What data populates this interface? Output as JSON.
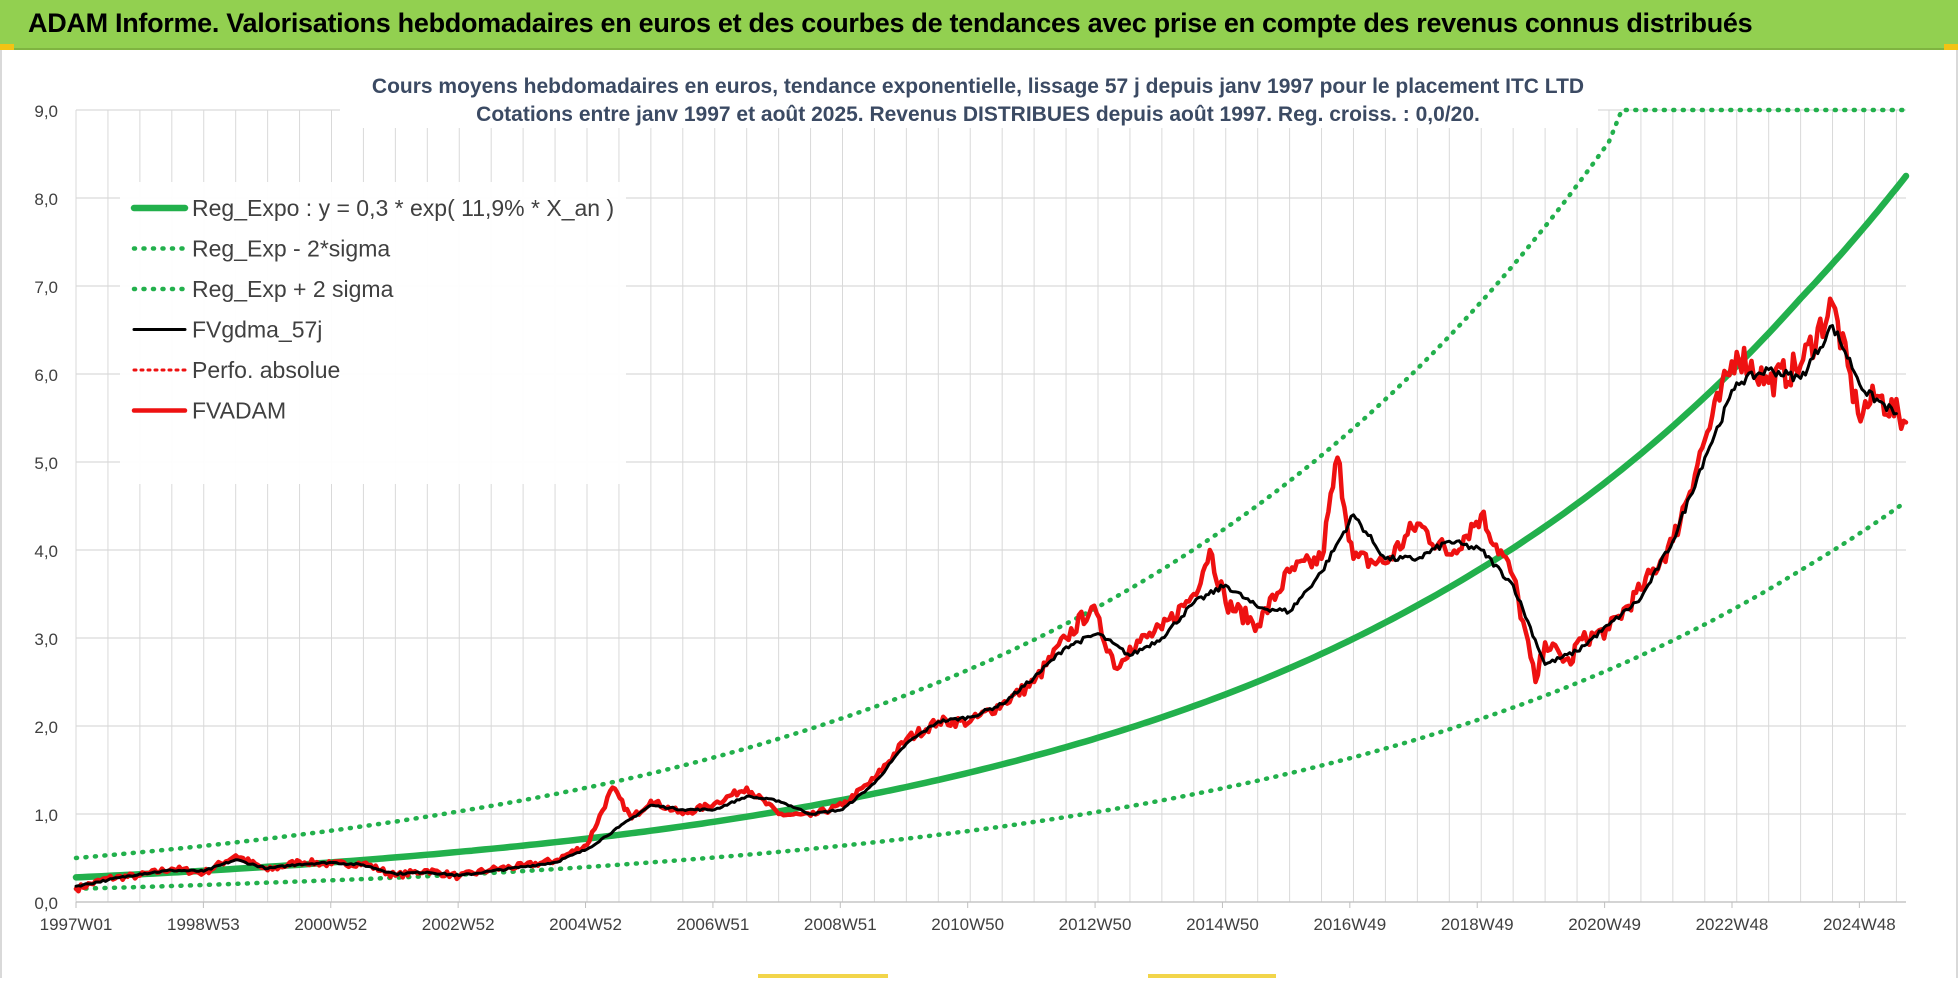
{
  "header": {
    "title": "ADAM Informe. Valorisations hebdomadaires en euros et des courbes de tendances avec prise en compte des revenus connus distribués"
  },
  "chart_data": {
    "type": "line",
    "title": "Cours moyens hebdomadaires en euros, tendance exponentielle, lissage 57 j depuis janv 1997 pour le placement ITC LTD",
    "subtitle": "Cotations entre janv 1997 et août 2025.  Revenus DISTRIBUES depuis août 1997. Reg. croiss. : 0,0/20.",
    "xlabel": "",
    "ylabel": "",
    "x_ticks": [
      "1997W01",
      "1998W53",
      "2000W52",
      "2002W52",
      "2004W52",
      "2006W51",
      "2008W51",
      "2010W50",
      "2012W50",
      "2014W50",
      "2016W49",
      "2018W49",
      "2020W49",
      "2022W48",
      "2024W48"
    ],
    "x_range": [
      1997.0,
      2025.65
    ],
    "ylim": [
      0,
      9
    ],
    "y_ticks": [
      "0,0",
      "1,0",
      "2,0",
      "3,0",
      "4,0",
      "5,0",
      "6,0",
      "7,0",
      "8,0",
      "9,0"
    ],
    "grid": true,
    "legend_position": "top-left",
    "colors": {
      "trend": "#22b04c",
      "band": "#22b04c",
      "smooth": "#000000",
      "price": "#ee1111",
      "grid": "#d9d9d9"
    },
    "series": [
      {
        "name": "Reg_Expo : y = 0,3 * exp( 11,9% *  X_an )",
        "style": "solid-thick",
        "x": [
          1997,
          2000,
          2003,
          2006,
          2009,
          2012,
          2015,
          2018,
          2021,
          2024,
          2025.65
        ],
        "values": [
          0.28,
          0.4,
          0.57,
          0.81,
          1.16,
          1.66,
          2.36,
          3.37,
          4.8,
          6.86,
          8.25
        ]
      },
      {
        "name": "Reg_Exp - 2*sigma",
        "style": "dotted",
        "x": [
          1997,
          2000,
          2003,
          2006,
          2009,
          2012,
          2015,
          2018,
          2021,
          2024,
          2025.65
        ],
        "values": [
          0.15,
          0.22,
          0.31,
          0.45,
          0.64,
          0.91,
          1.3,
          1.85,
          2.64,
          3.77,
          4.55
        ]
      },
      {
        "name": "Reg_Exp + 2 sigma",
        "style": "dotted",
        "x": [
          1997,
          2000,
          2003,
          2006,
          2009,
          2012,
          2015,
          2018,
          2021,
          2021.2,
          2025.65
        ],
        "values": [
          0.5,
          0.72,
          1.03,
          1.46,
          2.09,
          2.98,
          4.25,
          6.06,
          8.64,
          9.0,
          9.0
        ]
      },
      {
        "name": "FVgdma_57j",
        "style": "solid",
        "x": [
          1997.0,
          1997.5,
          1998.0,
          1998.5,
          1999.0,
          1999.5,
          2000.0,
          2000.5,
          2001.0,
          2001.5,
          2002.0,
          2002.5,
          2003.0,
          2003.5,
          2004.0,
          2004.5,
          2005.0,
          2005.5,
          2006.0,
          2006.5,
          2007.0,
          2007.5,
          2008.0,
          2008.5,
          2009.0,
          2009.5,
          2010.0,
          2010.5,
          2011.0,
          2011.5,
          2012.0,
          2012.5,
          2013.0,
          2013.5,
          2014.0,
          2014.5,
          2015.0,
          2015.5,
          2016.0,
          2016.5,
          2017.0,
          2017.5,
          2018.0,
          2018.5,
          2019.0,
          2019.5,
          2020.0,
          2020.5,
          2021.0,
          2021.5,
          2022.0,
          2022.5,
          2023.0,
          2023.5,
          2024.0,
          2024.5,
          2025.0,
          2025.5
        ],
        "values": [
          0.18,
          0.25,
          0.32,
          0.36,
          0.35,
          0.48,
          0.38,
          0.43,
          0.45,
          0.42,
          0.32,
          0.34,
          0.3,
          0.35,
          0.4,
          0.45,
          0.6,
          0.85,
          1.1,
          1.05,
          1.05,
          1.2,
          1.15,
          1.0,
          1.05,
          1.35,
          1.8,
          2.05,
          2.1,
          2.25,
          2.55,
          2.9,
          3.05,
          2.8,
          3.0,
          3.4,
          3.6,
          3.35,
          3.3,
          3.75,
          4.4,
          3.9,
          3.9,
          4.1,
          4.0,
          3.6,
          2.7,
          2.85,
          3.15,
          3.45,
          4.1,
          5.05,
          5.9,
          6.05,
          5.95,
          6.55,
          5.8,
          5.55
        ]
      },
      {
        "name": "Perfo. absolue",
        "style": "dotted",
        "x": [],
        "values": []
      },
      {
        "name": "FVADAM",
        "style": "solid-thick",
        "x": [
          1997.0,
          1997.5,
          1998.0,
          1998.5,
          1999.0,
          1999.5,
          2000.0,
          2000.5,
          2001.0,
          2001.5,
          2002.0,
          2002.5,
          2003.0,
          2003.5,
          2004.0,
          2004.5,
          2005.0,
          2005.4,
          2005.7,
          2006.0,
          2006.5,
          2007.0,
          2007.5,
          2008.0,
          2008.5,
          2009.0,
          2009.5,
          2010.0,
          2010.5,
          2011.0,
          2011.5,
          2012.0,
          2012.5,
          2012.9,
          2013.3,
          2013.5,
          2014.0,
          2014.5,
          2014.75,
          2015.0,
          2015.5,
          2016.0,
          2016.5,
          2016.75,
          2017.0,
          2017.5,
          2018.0,
          2018.5,
          2019.0,
          2019.5,
          2019.85,
          2020.0,
          2020.4,
          2020.5,
          2021.0,
          2021.5,
          2022.0,
          2022.5,
          2023.0,
          2023.5,
          2024.0,
          2024.5,
          2024.9,
          2025.2,
          2025.65
        ],
        "values": [
          0.15,
          0.27,
          0.3,
          0.38,
          0.33,
          0.53,
          0.36,
          0.46,
          0.43,
          0.44,
          0.3,
          0.36,
          0.29,
          0.37,
          0.41,
          0.47,
          0.65,
          1.3,
          0.95,
          1.15,
          1.0,
          1.12,
          1.3,
          1.0,
          0.98,
          1.1,
          1.4,
          1.85,
          2.05,
          2.05,
          2.25,
          2.5,
          3.0,
          3.35,
          2.65,
          2.9,
          3.1,
          3.5,
          4.0,
          3.4,
          3.15,
          3.75,
          3.9,
          5.05,
          3.9,
          3.85,
          4.3,
          3.95,
          4.4,
          3.7,
          2.5,
          2.95,
          2.7,
          2.95,
          3.1,
          3.55,
          4.1,
          5.25,
          6.25,
          5.9,
          6.1,
          6.8,
          5.55,
          5.75,
          5.45
        ]
      }
    ]
  }
}
